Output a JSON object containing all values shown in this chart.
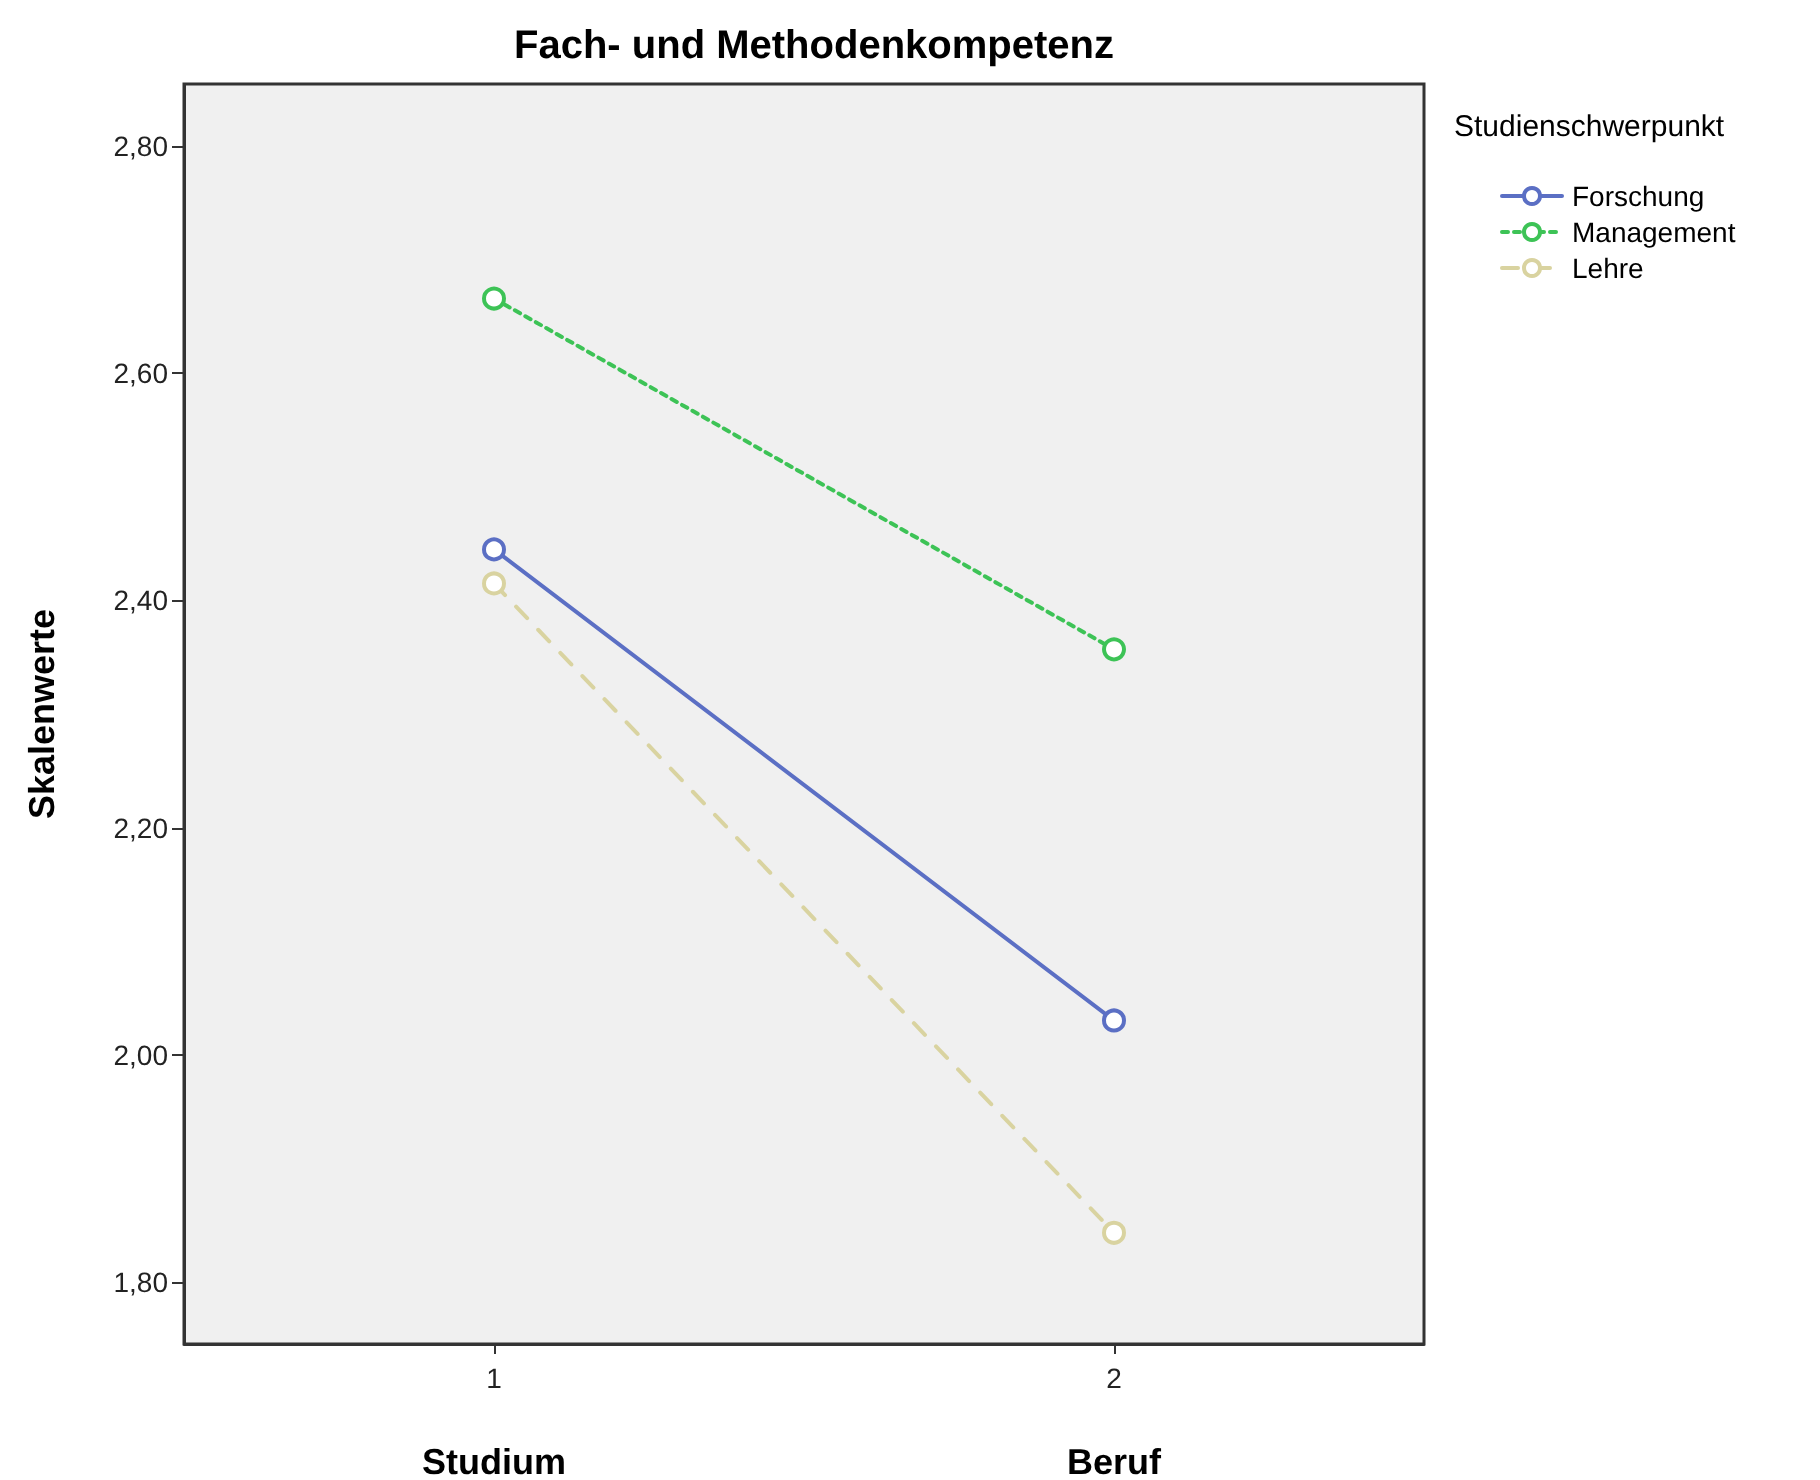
{
  "chart_data": {
    "type": "line",
    "title": "Fach- und Methodenkompetenz",
    "ylabel": "Skalenwerte",
    "legend_title": "Studienschwerpunkt",
    "categories": [
      "1",
      "2"
    ],
    "annotations": [
      "Studium",
      "Beruf"
    ],
    "series": [
      {
        "name": "Forschung",
        "color": "#5b6fc4",
        "values": [
          2.445,
          2.03
        ],
        "line_style": "solid"
      },
      {
        "name": "Management",
        "color": "#3dc356",
        "values": [
          2.666,
          2.357
        ],
        "line_style": "dotted"
      },
      {
        "name": "Lehre",
        "color": "#d9d3a0",
        "values": [
          2.415,
          1.843
        ],
        "line_style": "dashed"
      }
    ],
    "ylim": [
      1.745,
      2.855
    ],
    "yticks": [
      {
        "value": 1.8,
        "label": "1,80"
      },
      {
        "value": 2.0,
        "label": "2,00"
      },
      {
        "value": 2.2,
        "label": "2,20"
      },
      {
        "value": 2.4,
        "label": "2,40"
      },
      {
        "value": 2.6,
        "label": "2,60"
      },
      {
        "value": 2.8,
        "label": "2,80"
      }
    ],
    "grid": false,
    "legend": "top right",
    "marker": "circle"
  }
}
